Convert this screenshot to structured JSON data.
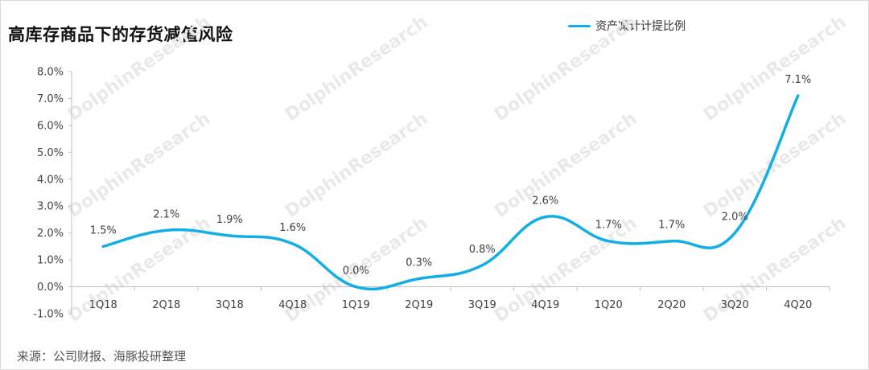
{
  "title": "高库存商品下的存货减值风险",
  "source": "来源：公司财报、海豚投研整理",
  "watermark": "DolphinResearch",
  "colors": {
    "line": "#12aee6",
    "axis": "#bfbfbf",
    "text": "#404040",
    "watermark": "#e9e9e9"
  },
  "chart_data": {
    "type": "line",
    "categories": [
      "1Q18",
      "2Q18",
      "3Q18",
      "4Q18",
      "1Q19",
      "2Q19",
      "3Q19",
      "4Q19",
      "1Q20",
      "2Q20",
      "3Q20",
      "4Q20"
    ],
    "series": [
      {
        "name": "资产减计计提比例",
        "values": [
          1.5,
          2.1,
          1.9,
          1.6,
          0.0,
          0.3,
          0.8,
          2.6,
          1.7,
          1.7,
          2.0,
          7.1
        ],
        "labels": [
          "1.5%",
          "2.1%",
          "1.9%",
          "1.6%",
          "0.0%",
          "0.3%",
          "0.8%",
          "2.6%",
          "1.7%",
          "1.7%",
          "2.0%",
          "7.1%"
        ]
      }
    ],
    "y_ticks": [
      "-1.0%",
      "0.0%",
      "1.0%",
      "2.0%",
      "3.0%",
      "4.0%",
      "5.0%",
      "6.0%",
      "7.0%",
      "8.0%"
    ],
    "ylim": [
      -1,
      8
    ],
    "smooth": true,
    "grid": false,
    "legend": "top-right"
  }
}
